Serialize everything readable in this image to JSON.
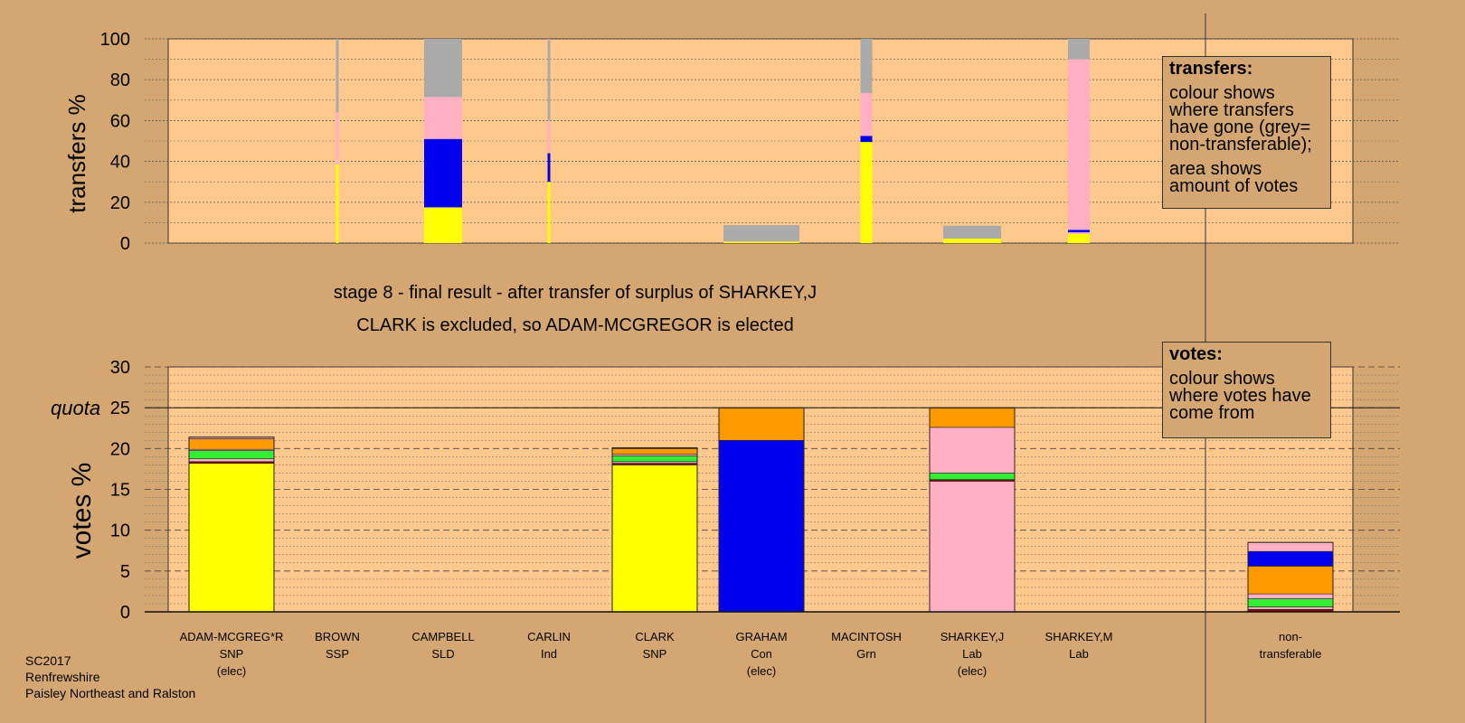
{
  "chart_data": [
    {
      "type": "bar",
      "stacked": true,
      "ylabel": "transfers %",
      "ylim": [
        0,
        100
      ],
      "yticks": [
        0,
        20,
        40,
        60,
        80,
        100
      ],
      "grid": true,
      "bars": [
        {
          "candidate": "BROWN",
          "segments": [
            {
              "color": "#ffff00",
              "value": 38.5
            },
            {
              "color": "#ffb0c4",
              "value": 25.5
            },
            {
              "color": "#aaaaaa",
              "value": 36
            }
          ]
        },
        {
          "candidate": "CAMPBELL",
          "segments": [
            {
              "color": "#ffff00",
              "value": 17.5
            },
            {
              "color": "#0000ee",
              "value": 33.5
            },
            {
              "color": "#ffb0c4",
              "value": 20.5
            },
            {
              "color": "#aaaaaa",
              "value": 28.5
            }
          ]
        },
        {
          "candidate": "CARLIN",
          "segments": [
            {
              "color": "#ffff00",
              "value": 30
            },
            {
              "color": "#0000ee",
              "value": 14
            },
            {
              "color": "#ffb0c4",
              "value": 16
            },
            {
              "color": "#aaaaaa",
              "value": 40
            }
          ]
        },
        {
          "candidate": "GRAHAM",
          "segments": [
            {
              "color": "#ffff00",
              "value": 0.8
            },
            {
              "color": "#aaaaaa",
              "value": 8
            }
          ]
        },
        {
          "candidate": "MACINTOSH",
          "segments": [
            {
              "color": "#ffff00",
              "value": 49.5
            },
            {
              "color": "#0000ee",
              "value": 3
            },
            {
              "color": "#ffb0c4",
              "value": 21
            },
            {
              "color": "#aaaaaa",
              "value": 26.5
            }
          ]
        },
        {
          "candidate": "SHARKEY,J",
          "segments": [
            {
              "color": "#ffff00",
              "value": 2.2
            },
            {
              "color": "#aaaaaa",
              "value": 6.3
            }
          ]
        },
        {
          "candidate": "SHARKEY,M",
          "segments": [
            {
              "color": "#ffff00",
              "value": 4.5
            },
            {
              "color": "#ffb0c4",
              "value": 0.8
            },
            {
              "color": "#0000ee",
              "value": 1.2
            },
            {
              "color": "#ffb0c4",
              "value": 83.5
            },
            {
              "color": "#aaaaaa",
              "value": 10
            }
          ]
        }
      ]
    },
    {
      "type": "bar",
      "stacked": true,
      "ylabel": "votes %",
      "ylim": [
        0,
        30
      ],
      "yticks": [
        0,
        5,
        10,
        15,
        20,
        25,
        30
      ],
      "quota": 25,
      "quota_label": "quota",
      "grid": true,
      "candidates": [
        {
          "name": "ADAM-MCGREG*R",
          "party": "SNP",
          "status": "(elec)",
          "segments": [
            {
              "color": "#ffff00",
              "value": 18.2
            },
            {
              "color": "#8b0000",
              "value": 0.2
            },
            {
              "color": "#ffb0c4",
              "value": 0.35
            },
            {
              "color": "#33ee33",
              "value": 1.0
            },
            {
              "color": "#ffb0c4",
              "value": 0.15
            },
            {
              "color": "#ff9900",
              "value": 1.3
            },
            {
              "color": "#ffb0c4",
              "value": 0.2
            }
          ]
        },
        {
          "name": "BROWN",
          "party": "SSP",
          "status": "",
          "segments": []
        },
        {
          "name": "CAMPBELL",
          "party": "SLD",
          "status": "",
          "segments": []
        },
        {
          "name": "CARLIN",
          "party": "Ind",
          "status": "",
          "segments": []
        },
        {
          "name": "CLARK",
          "party": "SNP",
          "status": "",
          "segments": [
            {
              "color": "#ffff00",
              "value": 18.0
            },
            {
              "color": "#8b0000",
              "value": 0.2
            },
            {
              "color": "#ffb0c4",
              "value": 0.2
            },
            {
              "color": "#33ee33",
              "value": 0.7
            },
            {
              "color": "#ffb0c4",
              "value": 0.2
            },
            {
              "color": "#ff9900",
              "value": 0.7
            },
            {
              "color": "#ffb0c4",
              "value": 0.1
            }
          ]
        },
        {
          "name": "GRAHAM",
          "party": "Con",
          "status": "(elec)",
          "segments": [
            {
              "color": "#0000ee",
              "value": 21.0
            },
            {
              "color": "#ff9900",
              "value": 4.0
            }
          ]
        },
        {
          "name": "MACINTOSH",
          "party": "Grn",
          "status": "",
          "segments": []
        },
        {
          "name": "SHARKEY,J",
          "party": "Lab",
          "status": "(elec)",
          "segments": [
            {
              "color": "#ffb0c4",
              "value": 16.0
            },
            {
              "color": "#8b0000",
              "value": 0.2
            },
            {
              "color": "#33ee33",
              "value": 0.8
            },
            {
              "color": "#ffb0c4",
              "value": 5.6
            },
            {
              "color": "#ff9900",
              "value": 2.4
            }
          ]
        },
        {
          "name": "SHARKEY,M",
          "party": "Lab",
          "status": "",
          "segments": []
        }
      ],
      "nontransferable": {
        "name": "non-",
        "name2": "transferable",
        "segments": [
          {
            "color": "#8b0000",
            "value": 0.3
          },
          {
            "color": "#ffb0c4",
            "value": 0.3
          },
          {
            "color": "#33ee33",
            "value": 1.0
          },
          {
            "color": "#ffb0c4",
            "value": 0.6
          },
          {
            "color": "#ff9900",
            "value": 3.4
          },
          {
            "color": "#0000ee",
            "value": 1.8
          },
          {
            "color": "#ffb0c4",
            "value": 1.1
          }
        ]
      }
    }
  ],
  "stage_title": "stage 8 - final result - after transfer of surplus of SHARKEY,J",
  "stage_subtitle": "CLARK is excluded, so ADAM-MCGREGOR is elected",
  "transfers_legend": {
    "title": "transfers:",
    "line1": "colour shows where transfers have gone (grey= non-transferable);",
    "line2": "area shows amount of votes"
  },
  "votes_legend": {
    "title": "votes:",
    "line1": "colour shows where votes have come from"
  },
  "footer": {
    "line1": "SC2017",
    "line2": "Renfrewshire",
    "line3": "Paisley Northeast and Ralston"
  }
}
